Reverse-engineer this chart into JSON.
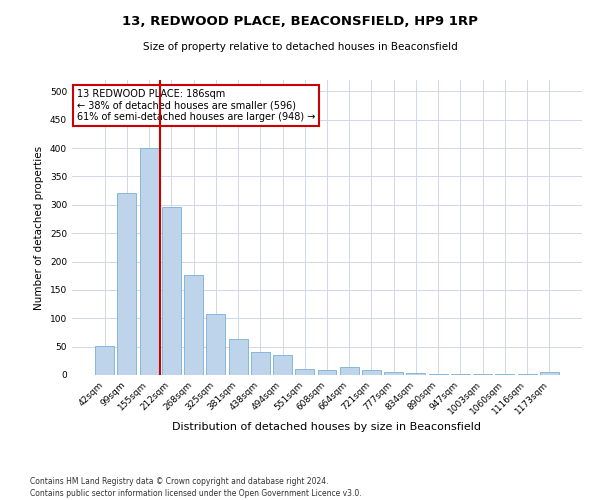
{
  "title": "13, REDWOOD PLACE, BEACONSFIELD, HP9 1RP",
  "subtitle": "Size of property relative to detached houses in Beaconsfield",
  "xlabel": "Distribution of detached houses by size in Beaconsfield",
  "ylabel": "Number of detached properties",
  "footnote1": "Contains HM Land Registry data © Crown copyright and database right 2024.",
  "footnote2": "Contains public sector information licensed under the Open Government Licence v3.0.",
  "categories": [
    "42sqm",
    "99sqm",
    "155sqm",
    "212sqm",
    "268sqm",
    "325sqm",
    "381sqm",
    "438sqm",
    "494sqm",
    "551sqm",
    "608sqm",
    "664sqm",
    "721sqm",
    "777sqm",
    "834sqm",
    "890sqm",
    "947sqm",
    "1003sqm",
    "1060sqm",
    "1116sqm",
    "1173sqm"
  ],
  "values": [
    52,
    320,
    401,
    296,
    176,
    107,
    63,
    40,
    35,
    10,
    9,
    14,
    8,
    6,
    3,
    1,
    1,
    1,
    1,
    1,
    5
  ],
  "bar_color": "#bdd4ea",
  "bar_edge_color": "#7aafd4",
  "vline_color": "#cc0000",
  "annotation_text": "13 REDWOOD PLACE: 186sqm\n← 38% of detached houses are smaller (596)\n61% of semi-detached houses are larger (948) →",
  "annotation_box_color": "#ffffff",
  "annotation_box_edge": "#cc0000",
  "ylim": [
    0,
    520
  ],
  "yticks": [
    0,
    50,
    100,
    150,
    200,
    250,
    300,
    350,
    400,
    450,
    500
  ],
  "background_color": "#ffffff",
  "grid_color": "#d0d8e8",
  "title_fontsize": 9.5,
  "subtitle_fontsize": 7.5,
  "xlabel_fontsize": 8,
  "ylabel_fontsize": 7.5,
  "tick_fontsize": 6.5,
  "footnote_fontsize": 5.5
}
